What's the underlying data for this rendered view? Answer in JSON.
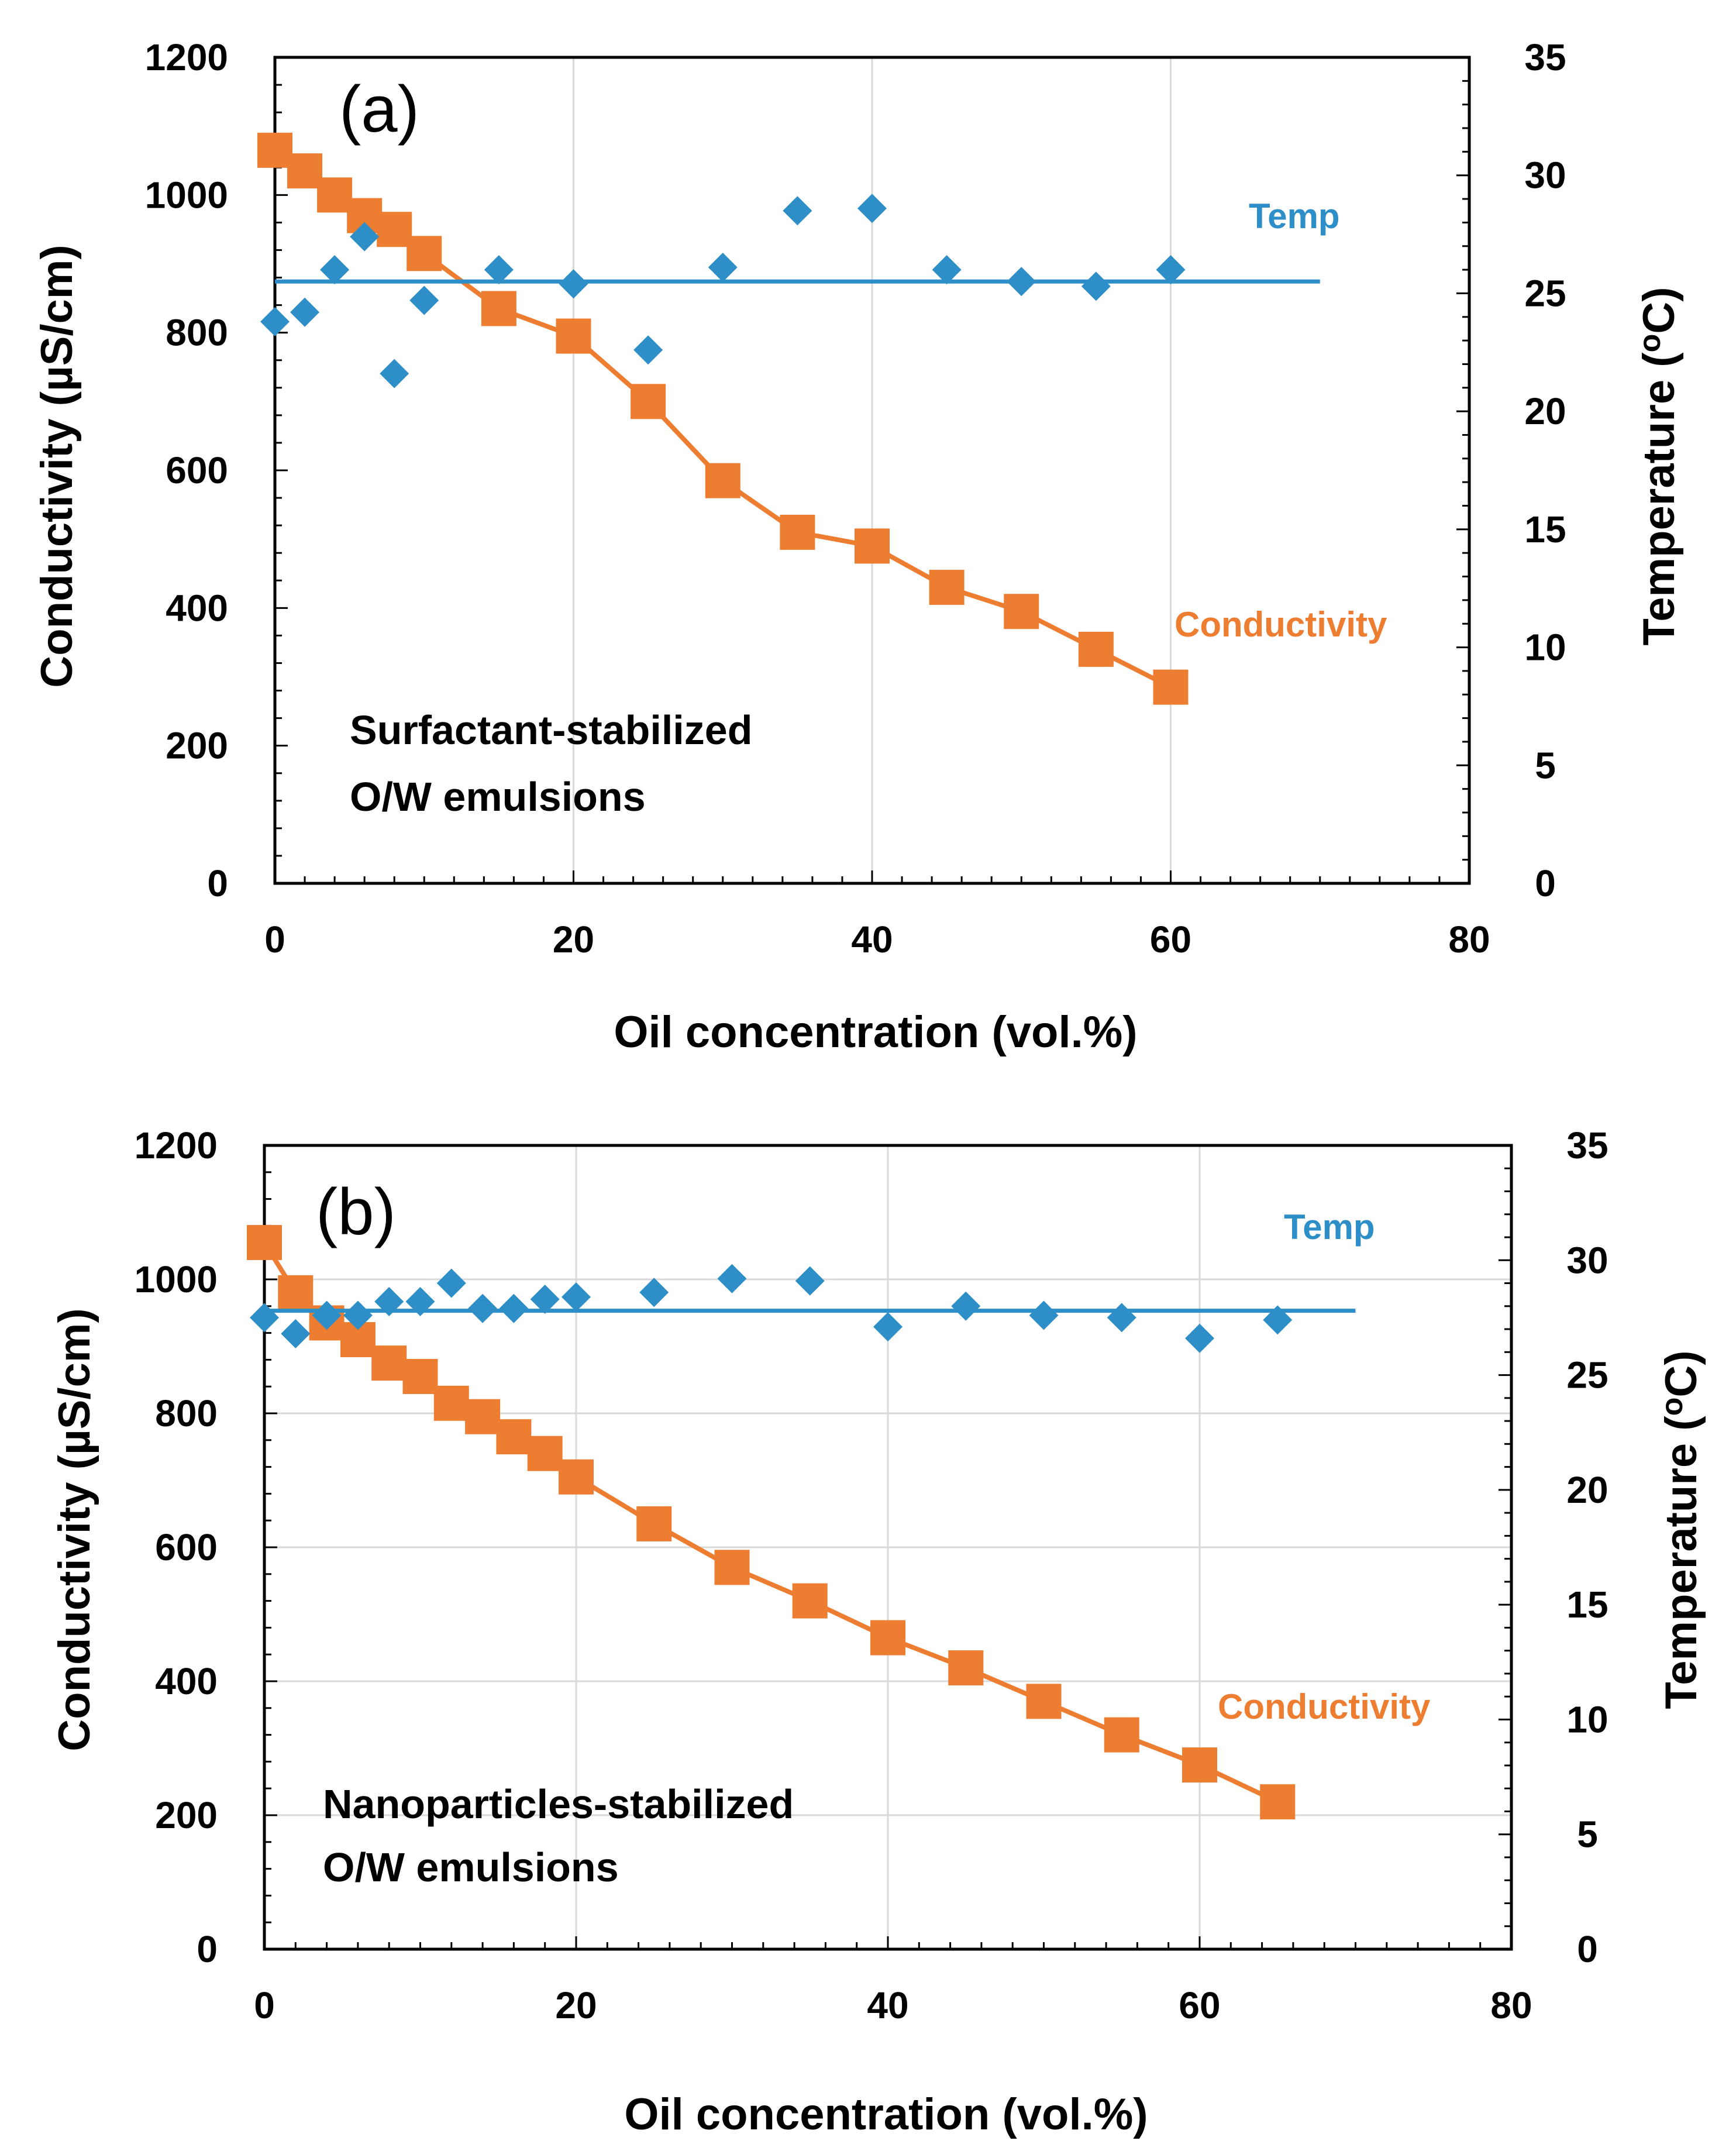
{
  "colors": {
    "conductivity": "#ED7D31",
    "temperature": "#2E8FC8",
    "grid": "#D9D9D9",
    "axis": "#000000"
  },
  "chart_data": [
    {
      "type": "scatter",
      "panel_label": "(a)",
      "annotation": [
        "Surfactant-stabilized",
        "O/W emulsions"
      ],
      "xlabel": "Oil concentration (vol.%)",
      "ylabel": "Conductivity (µS/cm)",
      "ylabel2": "Temperature (oC)",
      "xlim": [
        0,
        80
      ],
      "ylim": [
        0,
        1200
      ],
      "y2lim": [
        0,
        35
      ],
      "xticks": [
        "0",
        "20",
        "40",
        "60",
        "80"
      ],
      "yticks": [
        "0",
        "200",
        "400",
        "600",
        "800",
        "1000",
        "1200"
      ],
      "y2ticks": [
        "0",
        "5",
        "10",
        "15",
        "20",
        "25",
        "30",
        "35"
      ],
      "grid": "vertical",
      "series": [
        {
          "name": "Conductivity",
          "axis": "left",
          "marker": "square",
          "line": true,
          "x": [
            0,
            2,
            4,
            6,
            8,
            10,
            15,
            20,
            25,
            30,
            35,
            40,
            45,
            50,
            55,
            60
          ],
          "y": [
            1065,
            1035,
            1000,
            970,
            950,
            915,
            835,
            795,
            700,
            585,
            510,
            490,
            430,
            395,
            340,
            285
          ]
        },
        {
          "name": "Temp",
          "axis": "right",
          "marker": "diamond",
          "line": false,
          "x": [
            0,
            2,
            4,
            6,
            8,
            10,
            15,
            20,
            25,
            30,
            35,
            40,
            45,
            50,
            55,
            60
          ],
          "y": [
            23.8,
            24.2,
            26.0,
            27.4,
            21.6,
            24.7,
            26.0,
            25.4,
            22.6,
            26.1,
            28.5,
            28.6,
            26.0,
            25.5,
            25.3,
            26.0
          ]
        },
        {
          "name": "Temp trend",
          "axis": "right",
          "marker": "none",
          "line": true,
          "x": [
            0,
            70
          ],
          "y": [
            25.5,
            25.5
          ]
        }
      ]
    },
    {
      "type": "scatter",
      "panel_label": "(b)",
      "annotation": [
        "Nanoparticles-stabilized",
        "O/W emulsions"
      ],
      "xlabel": "Oil concentration (vol.%)",
      "ylabel": "Conductivity (µS/cm)",
      "ylabel2": "Temperature (oC)",
      "xlim": [
        0,
        80
      ],
      "ylim": [
        0,
        1200
      ],
      "y2lim": [
        0,
        35
      ],
      "xticks": [
        "0",
        "20",
        "40",
        "60",
        "80"
      ],
      "yticks": [
        "0",
        "200",
        "400",
        "600",
        "800",
        "1000",
        "1200"
      ],
      "y2ticks": [
        "0",
        "5",
        "10",
        "15",
        "20",
        "25",
        "30",
        "35"
      ],
      "grid": "both",
      "series": [
        {
          "name": "Conductivity",
          "axis": "left",
          "marker": "square",
          "line": true,
          "x": [
            0,
            2,
            4,
            6,
            8,
            10,
            12,
            14,
            16,
            18,
            20,
            25,
            30,
            35,
            40,
            45,
            50,
            55,
            60,
            65
          ],
          "y": [
            1055,
            980,
            935,
            910,
            875,
            855,
            815,
            795,
            765,
            740,
            705,
            635,
            570,
            520,
            465,
            420,
            370,
            320,
            275,
            220
          ]
        },
        {
          "name": "Temp",
          "axis": "right",
          "marker": "diamond",
          "line": false,
          "x": [
            0,
            2,
            4,
            6,
            8,
            10,
            12,
            14,
            16,
            18,
            20,
            25,
            30,
            35,
            40,
            45,
            50,
            55,
            60,
            65
          ],
          "y": [
            27.5,
            26.8,
            27.6,
            27.6,
            28.2,
            28.2,
            29.0,
            27.9,
            27.9,
            28.3,
            28.4,
            28.6,
            29.2,
            29.1,
            27.1,
            28.0,
            27.6,
            27.5,
            26.6,
            27.4
          ]
        },
        {
          "name": "Temp trend",
          "axis": "right",
          "marker": "none",
          "line": true,
          "x": [
            0,
            70
          ],
          "y": [
            27.8,
            27.8
          ]
        }
      ]
    }
  ]
}
